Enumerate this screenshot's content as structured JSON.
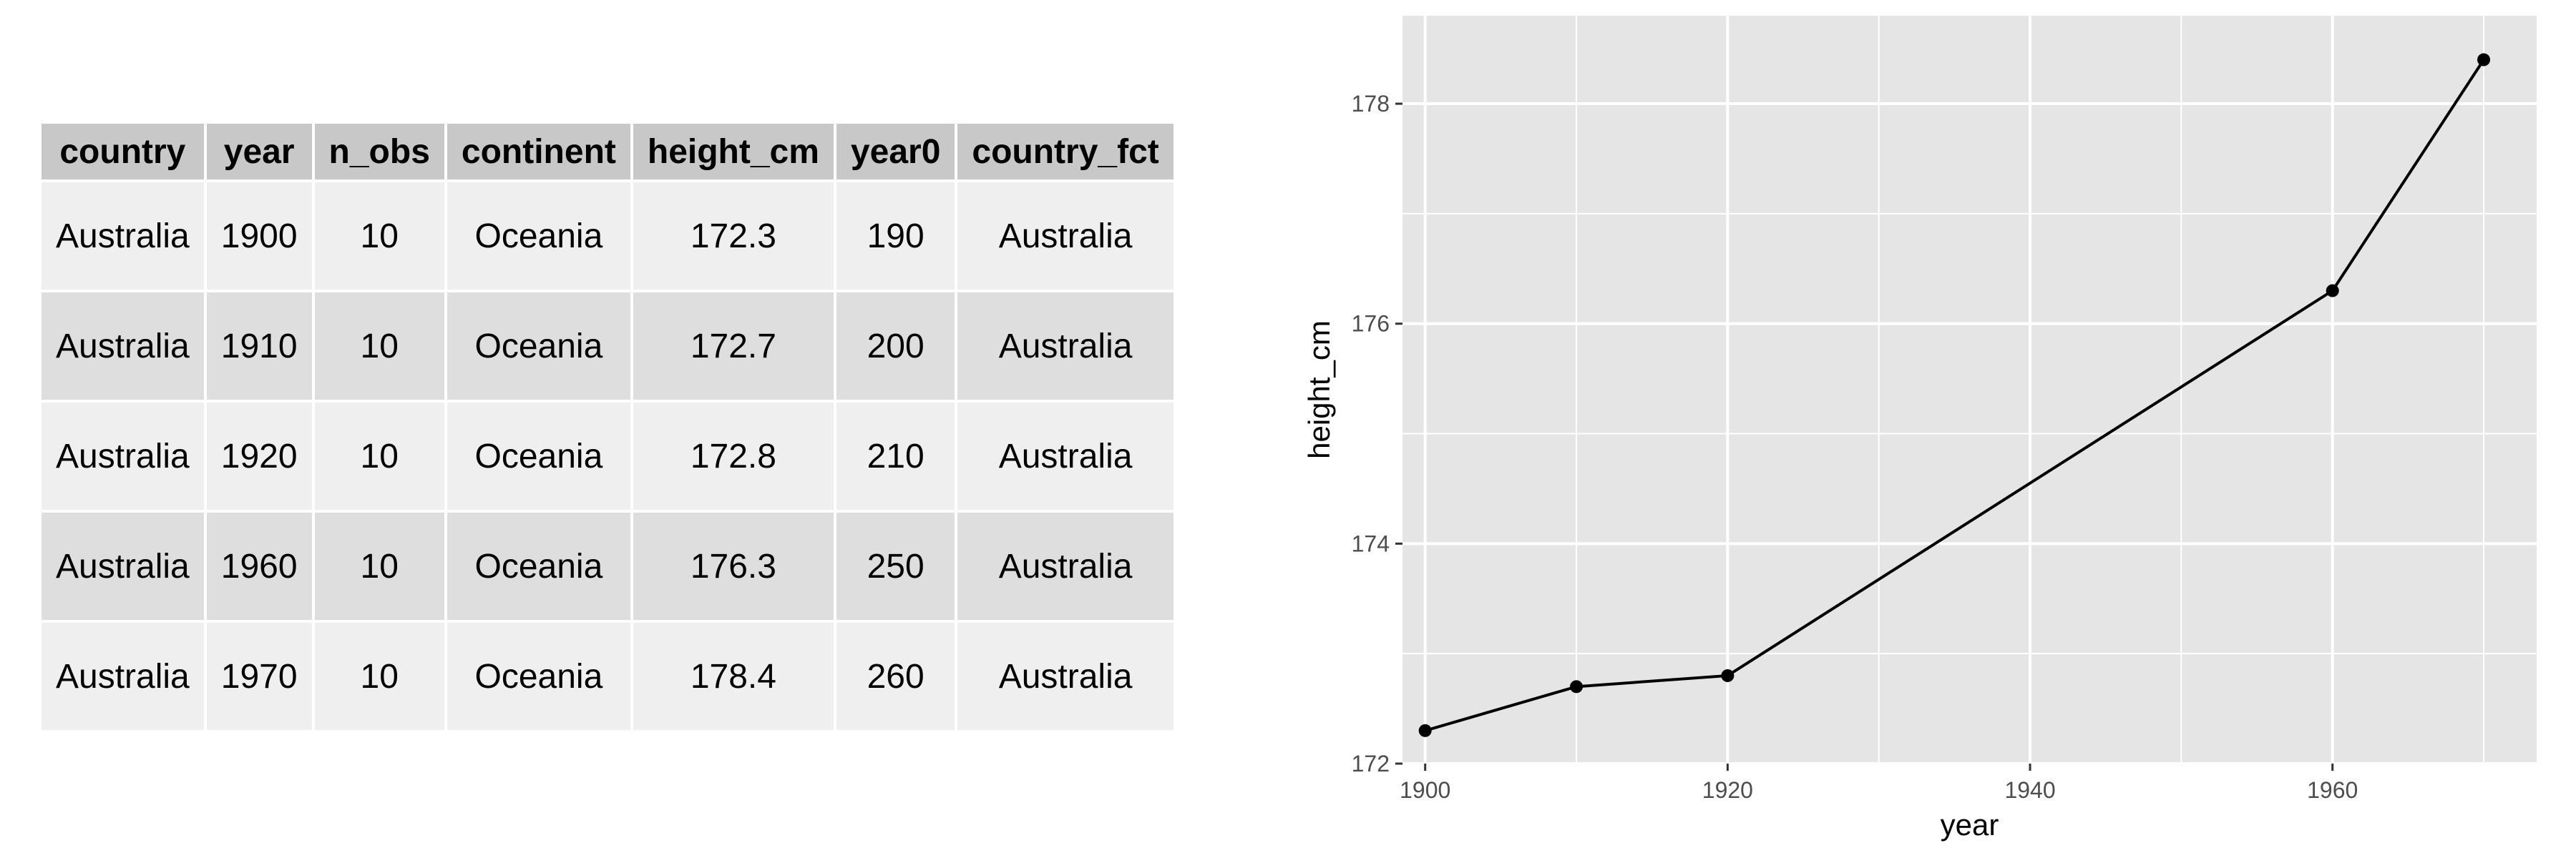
{
  "table": {
    "columns": [
      "country",
      "year",
      "n_obs",
      "continent",
      "height_cm",
      "year0",
      "country_fct"
    ],
    "rows": [
      [
        "Australia",
        "1900",
        "10",
        "Oceania",
        "172.3",
        "190",
        "Australia"
      ],
      [
        "Australia",
        "1910",
        "10",
        "Oceania",
        "172.7",
        "200",
        "Australia"
      ],
      [
        "Australia",
        "1920",
        "10",
        "Oceania",
        "172.8",
        "210",
        "Australia"
      ],
      [
        "Australia",
        "1960",
        "10",
        "Oceania",
        "176.3",
        "250",
        "Australia"
      ],
      [
        "Australia",
        "1970",
        "10",
        "Oceania",
        "178.4",
        "260",
        "Australia"
      ]
    ]
  },
  "chart_data": {
    "type": "line",
    "x": [
      1900,
      1910,
      1920,
      1960,
      1970
    ],
    "y": [
      172.3,
      172.7,
      172.8,
      176.3,
      178.4
    ],
    "xlabel": "year",
    "ylabel": "height_cm",
    "xlim": [
      1898.5,
      1973.5
    ],
    "ylim": [
      172,
      178.8
    ],
    "xticks": [
      1900,
      1920,
      1940,
      1960
    ],
    "yticks": [
      172,
      174,
      176,
      178
    ],
    "grid": true,
    "panel_color": "#e5e5e5",
    "line_color": "#000000"
  }
}
